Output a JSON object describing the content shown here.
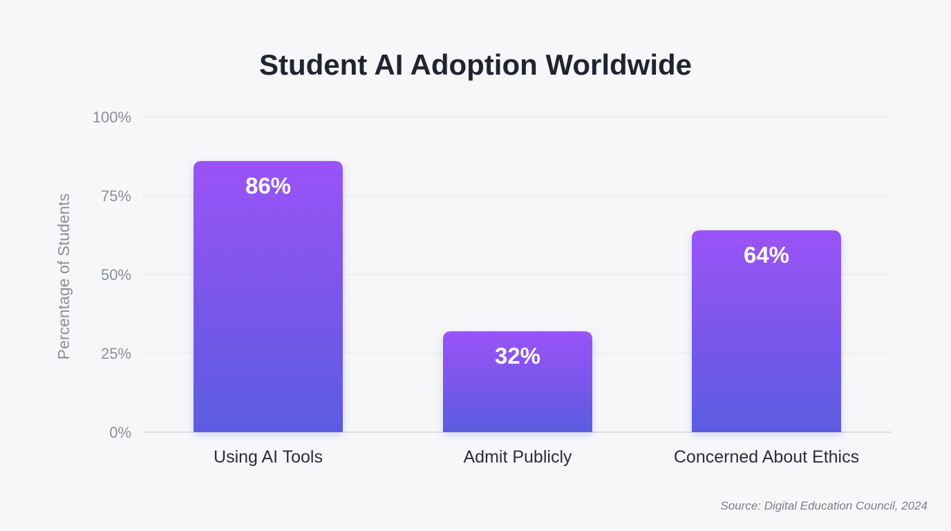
{
  "chart_data": {
    "type": "bar",
    "title": "Student AI Adoption Worldwide",
    "xlabel": "",
    "ylabel": "Percentage of Students",
    "categories": [
      "Using AI Tools",
      "Admit Publicly",
      "Concerned About Ethics"
    ],
    "values": [
      86,
      32,
      64
    ],
    "data_labels": [
      "86%",
      "32%",
      "64%"
    ],
    "ylim": [
      0,
      100
    ],
    "yticks": [
      0,
      25,
      50,
      75,
      100
    ],
    "ytick_labels": [
      "0%",
      "25%",
      "50%",
      "75%",
      "100%"
    ],
    "grid": true,
    "colors": {
      "bar_top": "#9a52f7",
      "bar_bottom": "#5b5ce0"
    }
  },
  "source": "Source: Digital Education Council, 2024"
}
